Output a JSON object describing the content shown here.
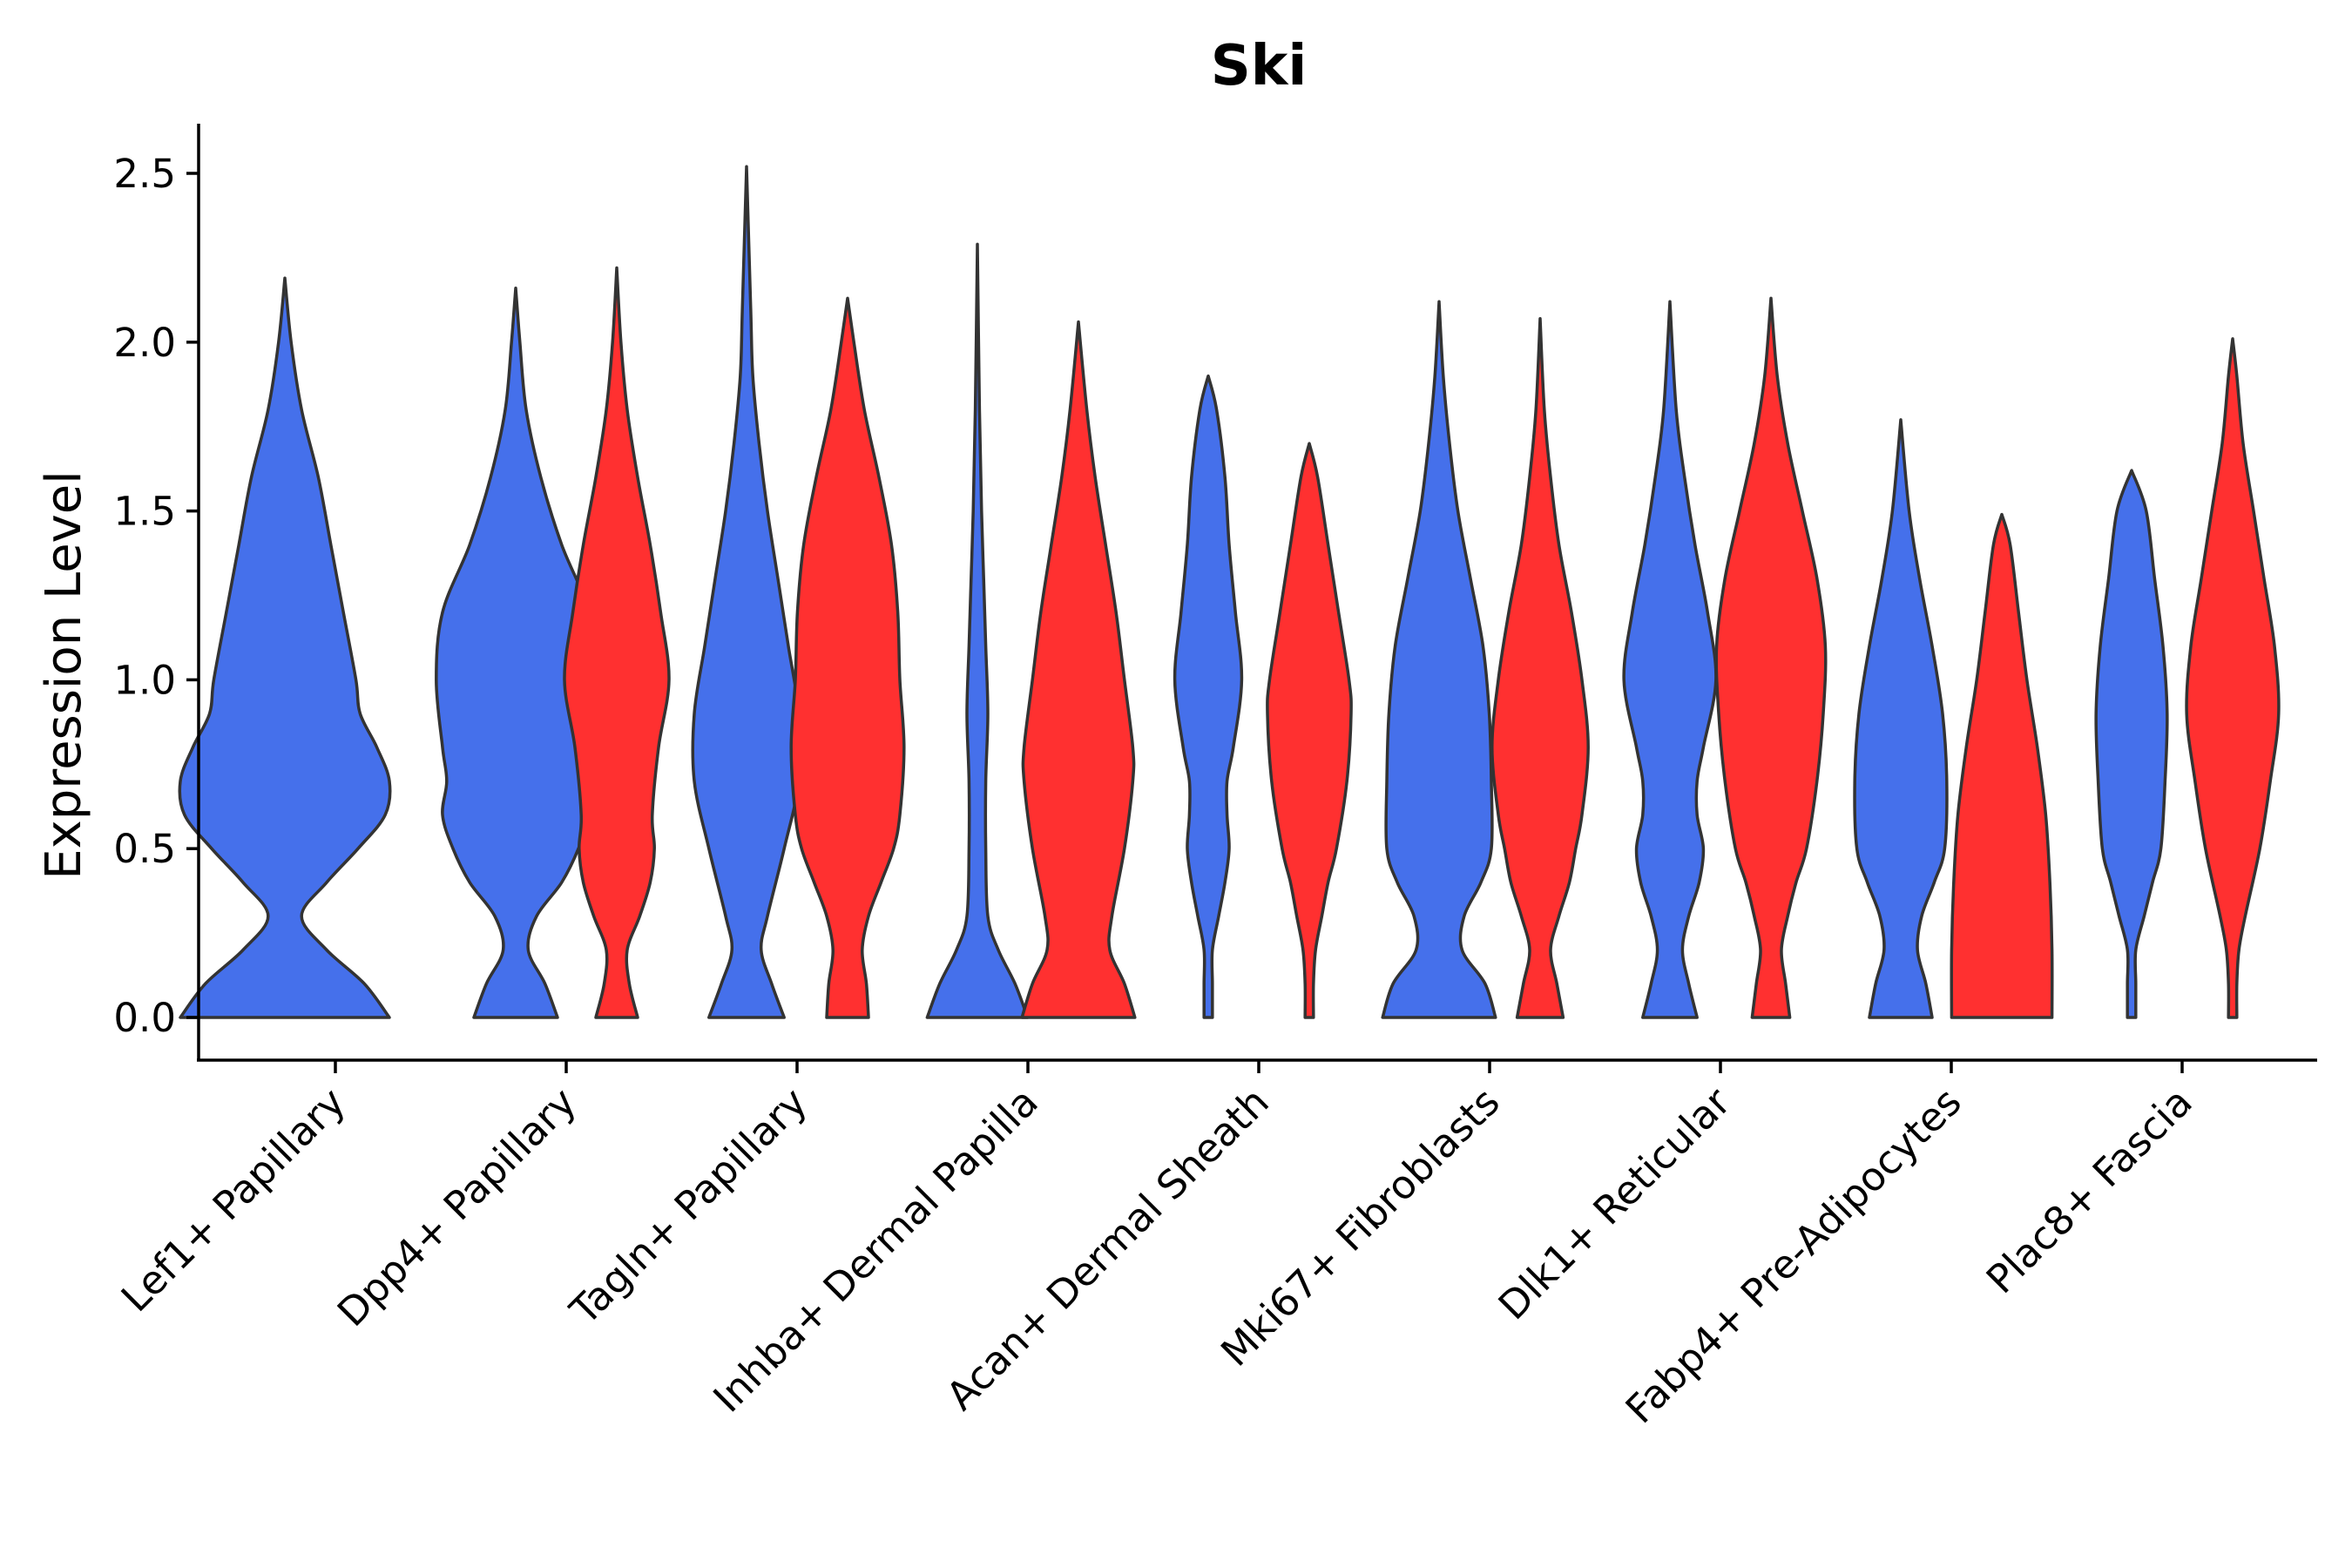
{
  "chart_data": {
    "type": "violin",
    "title": "Ski",
    "xlabel": "",
    "ylabel": "Expression Level",
    "ylim": [
      -0.12,
      2.65
    ],
    "yticks": [
      "0.0",
      "0.5",
      "1.0",
      "1.5",
      "2.0",
      "2.5"
    ],
    "categories": [
      "Lef1+ Papillary",
      "Dpp4+ Papillary",
      "Tagln+ Papillary",
      "Inhba+ Dermal Papilla",
      "Acan+ Dermal Sheath",
      "Mki67+ Fibroblasts",
      "Dlk1+ Reticular",
      "Fabp4+ Pre-Adipocytes",
      "Plac8+ Fascia"
    ],
    "split_colors": {
      "left": "#4570EB",
      "right": "#FF3030"
    },
    "violins": [
      {
        "category": "Lef1+ Papillary",
        "side": "left",
        "max": 2.19,
        "profile": [
          [
            0,
            0.5
          ],
          [
            0.1,
            0.38
          ],
          [
            0.2,
            0.2
          ],
          [
            0.3,
            0.08
          ],
          [
            0.4,
            0.2
          ],
          [
            0.5,
            0.35
          ],
          [
            0.6,
            0.48
          ],
          [
            0.7,
            0.5
          ],
          [
            0.8,
            0.44
          ],
          [
            0.9,
            0.36
          ],
          [
            1.0,
            0.34
          ],
          [
            1.2,
            0.28
          ],
          [
            1.4,
            0.22
          ],
          [
            1.6,
            0.16
          ],
          [
            1.8,
            0.08
          ],
          [
            2.0,
            0.03
          ],
          [
            2.19,
            0.0
          ]
        ]
      },
      {
        "category": "Dpp4+ Papillary",
        "side": "left",
        "max": 2.16,
        "profile": [
          [
            0,
            0.2
          ],
          [
            0.1,
            0.14
          ],
          [
            0.2,
            0.06
          ],
          [
            0.3,
            0.1
          ],
          [
            0.4,
            0.22
          ],
          [
            0.5,
            0.3
          ],
          [
            0.6,
            0.35
          ],
          [
            0.7,
            0.33
          ],
          [
            0.8,
            0.35
          ],
          [
            1.0,
            0.38
          ],
          [
            1.2,
            0.35
          ],
          [
            1.4,
            0.22
          ],
          [
            1.6,
            0.12
          ],
          [
            1.8,
            0.05
          ],
          [
            2.0,
            0.02
          ],
          [
            2.16,
            0.0
          ]
        ]
      },
      {
        "category": "Dpp4+ Papillary",
        "side": "right",
        "max": 2.22,
        "profile": [
          [
            0,
            0.1
          ],
          [
            0.1,
            0.06
          ],
          [
            0.2,
            0.05
          ],
          [
            0.3,
            0.11
          ],
          [
            0.4,
            0.16
          ],
          [
            0.5,
            0.18
          ],
          [
            0.6,
            0.17
          ],
          [
            0.8,
            0.2
          ],
          [
            1.0,
            0.25
          ],
          [
            1.2,
            0.21
          ],
          [
            1.4,
            0.16
          ],
          [
            1.6,
            0.1
          ],
          [
            1.8,
            0.05
          ],
          [
            2.0,
            0.02
          ],
          [
            2.22,
            0.0
          ]
        ]
      },
      {
        "category": "Tagln+ Papillary",
        "side": "left",
        "max": 2.52,
        "profile": [
          [
            0,
            0.18
          ],
          [
            0.1,
            0.12
          ],
          [
            0.2,
            0.07
          ],
          [
            0.3,
            0.1
          ],
          [
            0.5,
            0.18
          ],
          [
            0.7,
            0.25
          ],
          [
            0.9,
            0.25
          ],
          [
            1.1,
            0.2
          ],
          [
            1.3,
            0.15
          ],
          [
            1.5,
            0.1
          ],
          [
            1.7,
            0.06
          ],
          [
            1.9,
            0.03
          ],
          [
            2.1,
            0.02
          ],
          [
            2.52,
            0.0
          ]
        ]
      },
      {
        "category": "Tagln+ Papillary",
        "side": "right",
        "max": 2.13,
        "profile": [
          [
            0,
            0.1
          ],
          [
            0.1,
            0.09
          ],
          [
            0.2,
            0.07
          ],
          [
            0.3,
            0.1
          ],
          [
            0.4,
            0.16
          ],
          [
            0.5,
            0.22
          ],
          [
            0.6,
            0.25
          ],
          [
            0.8,
            0.27
          ],
          [
            1.0,
            0.25
          ],
          [
            1.2,
            0.24
          ],
          [
            1.4,
            0.21
          ],
          [
            1.6,
            0.15
          ],
          [
            1.8,
            0.08
          ],
          [
            2.0,
            0.03
          ],
          [
            2.13,
            0.0
          ]
        ]
      },
      {
        "category": "Inhba+ Dermal Papilla",
        "side": "left",
        "max": 2.29,
        "profile": [
          [
            0,
            0.24
          ],
          [
            0.1,
            0.18
          ],
          [
            0.2,
            0.1
          ],
          [
            0.3,
            0.05
          ],
          [
            0.5,
            0.04
          ],
          [
            0.7,
            0.04
          ],
          [
            0.9,
            0.05
          ],
          [
            1.1,
            0.04
          ],
          [
            1.3,
            0.03
          ],
          [
            1.5,
            0.02
          ],
          [
            1.8,
            0.01
          ],
          [
            2.29,
            0.0
          ]
        ]
      },
      {
        "category": "Inhba+ Dermal Papilla",
        "side": "right",
        "max": 2.06,
        "profile": [
          [
            0,
            0.27
          ],
          [
            0.1,
            0.22
          ],
          [
            0.2,
            0.15
          ],
          [
            0.3,
            0.16
          ],
          [
            0.5,
            0.22
          ],
          [
            0.7,
            0.26
          ],
          [
            0.8,
            0.26
          ],
          [
            1.0,
            0.22
          ],
          [
            1.2,
            0.18
          ],
          [
            1.4,
            0.13
          ],
          [
            1.6,
            0.08
          ],
          [
            1.8,
            0.04
          ],
          [
            2.06,
            0.0
          ]
        ]
      },
      {
        "category": "Acan+ Dermal Sheath",
        "side": "left",
        "max": 1.9,
        "profile": [
          [
            0,
            0.02
          ],
          [
            0.1,
            0.02
          ],
          [
            0.2,
            0.02
          ],
          [
            0.3,
            0.05
          ],
          [
            0.4,
            0.08
          ],
          [
            0.5,
            0.1
          ],
          [
            0.6,
            0.09
          ],
          [
            0.7,
            0.09
          ],
          [
            0.8,
            0.12
          ],
          [
            1.0,
            0.16
          ],
          [
            1.2,
            0.13
          ],
          [
            1.4,
            0.1
          ],
          [
            1.6,
            0.08
          ],
          [
            1.8,
            0.04
          ],
          [
            1.9,
            0.0
          ]
        ]
      },
      {
        "category": "Acan+ Dermal Sheath",
        "side": "right",
        "max": 1.7,
        "profile": [
          [
            0,
            0.02
          ],
          [
            0.1,
            0.02
          ],
          [
            0.2,
            0.03
          ],
          [
            0.3,
            0.06
          ],
          [
            0.4,
            0.09
          ],
          [
            0.5,
            0.13
          ],
          [
            0.7,
            0.18
          ],
          [
            0.9,
            0.2
          ],
          [
            1.0,
            0.19
          ],
          [
            1.2,
            0.14
          ],
          [
            1.4,
            0.09
          ],
          [
            1.6,
            0.04
          ],
          [
            1.7,
            0.0
          ]
        ]
      },
      {
        "category": "Mki67+ Fibroblasts",
        "side": "left",
        "max": 2.12,
        "profile": [
          [
            0,
            0.27
          ],
          [
            0.1,
            0.22
          ],
          [
            0.2,
            0.11
          ],
          [
            0.3,
            0.12
          ],
          [
            0.4,
            0.2
          ],
          [
            0.5,
            0.25
          ],
          [
            0.7,
            0.25
          ],
          [
            0.9,
            0.24
          ],
          [
            1.1,
            0.21
          ],
          [
            1.3,
            0.15
          ],
          [
            1.5,
            0.09
          ],
          [
            1.7,
            0.05
          ],
          [
            1.9,
            0.02
          ],
          [
            2.12,
            0.0
          ]
        ]
      },
      {
        "category": "Mki67+ Fibroblasts",
        "side": "right",
        "max": 2.07,
        "profile": [
          [
            0,
            0.11
          ],
          [
            0.1,
            0.08
          ],
          [
            0.2,
            0.05
          ],
          [
            0.3,
            0.09
          ],
          [
            0.4,
            0.14
          ],
          [
            0.5,
            0.17
          ],
          [
            0.6,
            0.2
          ],
          [
            0.8,
            0.23
          ],
          [
            1.0,
            0.2
          ],
          [
            1.2,
            0.15
          ],
          [
            1.4,
            0.09
          ],
          [
            1.6,
            0.05
          ],
          [
            1.8,
            0.02
          ],
          [
            2.07,
            0.0
          ]
        ]
      },
      {
        "category": "Dlk1+ Reticular",
        "side": "left",
        "max": 2.12,
        "profile": [
          [
            0,
            0.13
          ],
          [
            0.1,
            0.09
          ],
          [
            0.2,
            0.06
          ],
          [
            0.3,
            0.09
          ],
          [
            0.4,
            0.14
          ],
          [
            0.5,
            0.16
          ],
          [
            0.6,
            0.13
          ],
          [
            0.7,
            0.13
          ],
          [
            0.8,
            0.16
          ],
          [
            1.0,
            0.22
          ],
          [
            1.2,
            0.18
          ],
          [
            1.4,
            0.12
          ],
          [
            1.6,
            0.07
          ],
          [
            1.8,
            0.03
          ],
          [
            2.12,
            0.0
          ]
        ]
      },
      {
        "category": "Dlk1+ Reticular",
        "side": "right",
        "max": 2.13,
        "profile": [
          [
            0,
            0.09
          ],
          [
            0.1,
            0.07
          ],
          [
            0.2,
            0.05
          ],
          [
            0.3,
            0.08
          ],
          [
            0.4,
            0.12
          ],
          [
            0.5,
            0.17
          ],
          [
            0.7,
            0.22
          ],
          [
            0.9,
            0.25
          ],
          [
            1.1,
            0.26
          ],
          [
            1.3,
            0.22
          ],
          [
            1.5,
            0.15
          ],
          [
            1.7,
            0.08
          ],
          [
            1.9,
            0.03
          ],
          [
            2.13,
            0.0
          ]
        ]
      },
      {
        "category": "Fabp4+ Pre-Adipocytes",
        "side": "left",
        "max": 1.77,
        "profile": [
          [
            0,
            0.15
          ],
          [
            0.1,
            0.12
          ],
          [
            0.2,
            0.08
          ],
          [
            0.3,
            0.1
          ],
          [
            0.4,
            0.16
          ],
          [
            0.5,
            0.21
          ],
          [
            0.7,
            0.22
          ],
          [
            0.9,
            0.2
          ],
          [
            1.1,
            0.15
          ],
          [
            1.3,
            0.09
          ],
          [
            1.5,
            0.04
          ],
          [
            1.77,
            0.0
          ]
        ]
      },
      {
        "category": "Fabp4+ Pre-Adipocytes",
        "side": "right",
        "max": 1.49,
        "profile": [
          [
            0,
            0.24
          ],
          [
            0.2,
            0.24
          ],
          [
            0.4,
            0.23
          ],
          [
            0.6,
            0.21
          ],
          [
            0.8,
            0.17
          ],
          [
            1.0,
            0.12
          ],
          [
            1.2,
            0.08
          ],
          [
            1.4,
            0.04
          ],
          [
            1.49,
            0.0
          ]
        ]
      },
      {
        "category": "Plac8+ Fascia",
        "side": "left",
        "max": 1.62,
        "profile": [
          [
            0,
            0.02
          ],
          [
            0.1,
            0.02
          ],
          [
            0.2,
            0.02
          ],
          [
            0.3,
            0.06
          ],
          [
            0.4,
            0.1
          ],
          [
            0.5,
            0.14
          ],
          [
            0.7,
            0.16
          ],
          [
            0.9,
            0.17
          ],
          [
            1.1,
            0.15
          ],
          [
            1.3,
            0.11
          ],
          [
            1.5,
            0.07
          ],
          [
            1.62,
            0.0
          ]
        ]
      },
      {
        "category": "Plac8+ Fascia",
        "side": "right",
        "max": 2.01,
        "profile": [
          [
            0,
            0.02
          ],
          [
            0.1,
            0.02
          ],
          [
            0.2,
            0.03
          ],
          [
            0.3,
            0.06
          ],
          [
            0.5,
            0.13
          ],
          [
            0.7,
            0.18
          ],
          [
            0.9,
            0.22
          ],
          [
            1.1,
            0.2
          ],
          [
            1.3,
            0.15
          ],
          [
            1.5,
            0.1
          ],
          [
            1.7,
            0.05
          ],
          [
            1.9,
            0.02
          ],
          [
            2.01,
            0.0
          ]
        ]
      }
    ]
  }
}
